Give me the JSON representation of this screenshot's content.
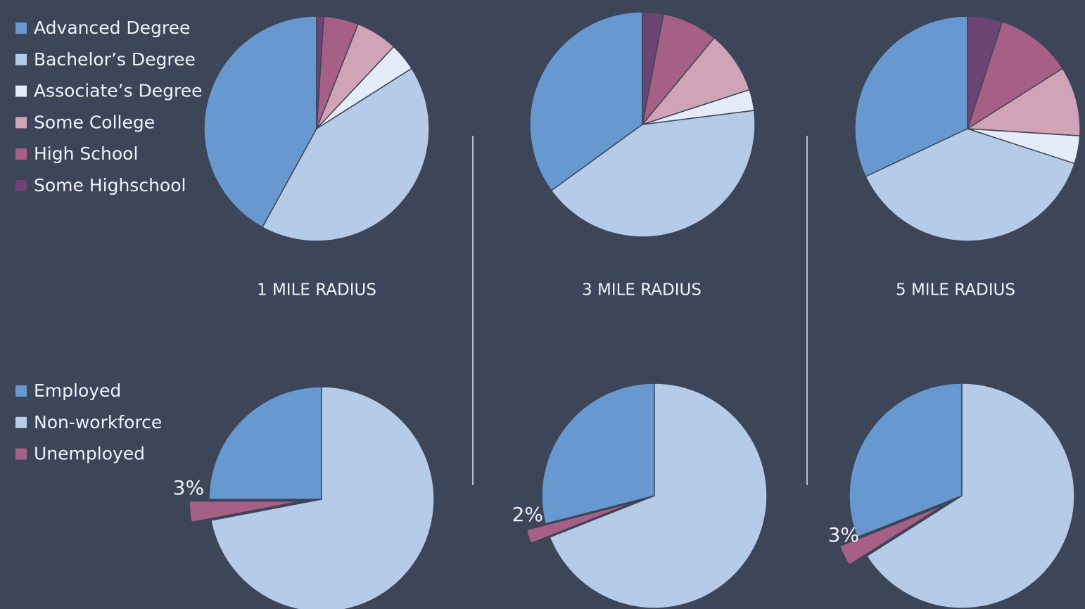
{
  "chart_data": [
    {
      "type": "pie",
      "title": "1 MILE RADIUS",
      "categories": [
        "Advanced Degree",
        "Bachelor’s Degree",
        "Associate’s Degree",
        "Some College",
        "High School",
        "Some Highschool"
      ],
      "colors": [
        "#6799d0",
        "#b5cbe7",
        "#e4ecf7",
        "#d0a4b6",
        "#a65f85",
        "#6b4474"
      ],
      "values": [
        42,
        42,
        4,
        6,
        5,
        1
      ]
    },
    {
      "type": "pie",
      "title": "3 MILE RADIUS",
      "values": [
        35,
        42,
        3,
        9,
        8,
        3
      ]
    },
    {
      "type": "pie",
      "title": "5 MILE RADIUS",
      "values": [
        32,
        38,
        4,
        10,
        11,
        5
      ]
    },
    {
      "type": "pie",
      "categories": [
        "Employed",
        "Non-workforce",
        "Unemployed"
      ],
      "colors": [
        "#6799d0",
        "#b5cbe7",
        "#a65f85"
      ],
      "values": [
        25,
        72,
        3
      ],
      "value_labels": [
        null,
        null,
        "3%"
      ]
    },
    {
      "type": "pie",
      "values": [
        29,
        69,
        2
      ],
      "value_labels": [
        null,
        null,
        "2%"
      ]
    },
    {
      "type": "pie",
      "values": [
        31,
        66,
        3
      ],
      "value_labels": [
        null,
        null,
        "3%"
      ]
    }
  ]
}
